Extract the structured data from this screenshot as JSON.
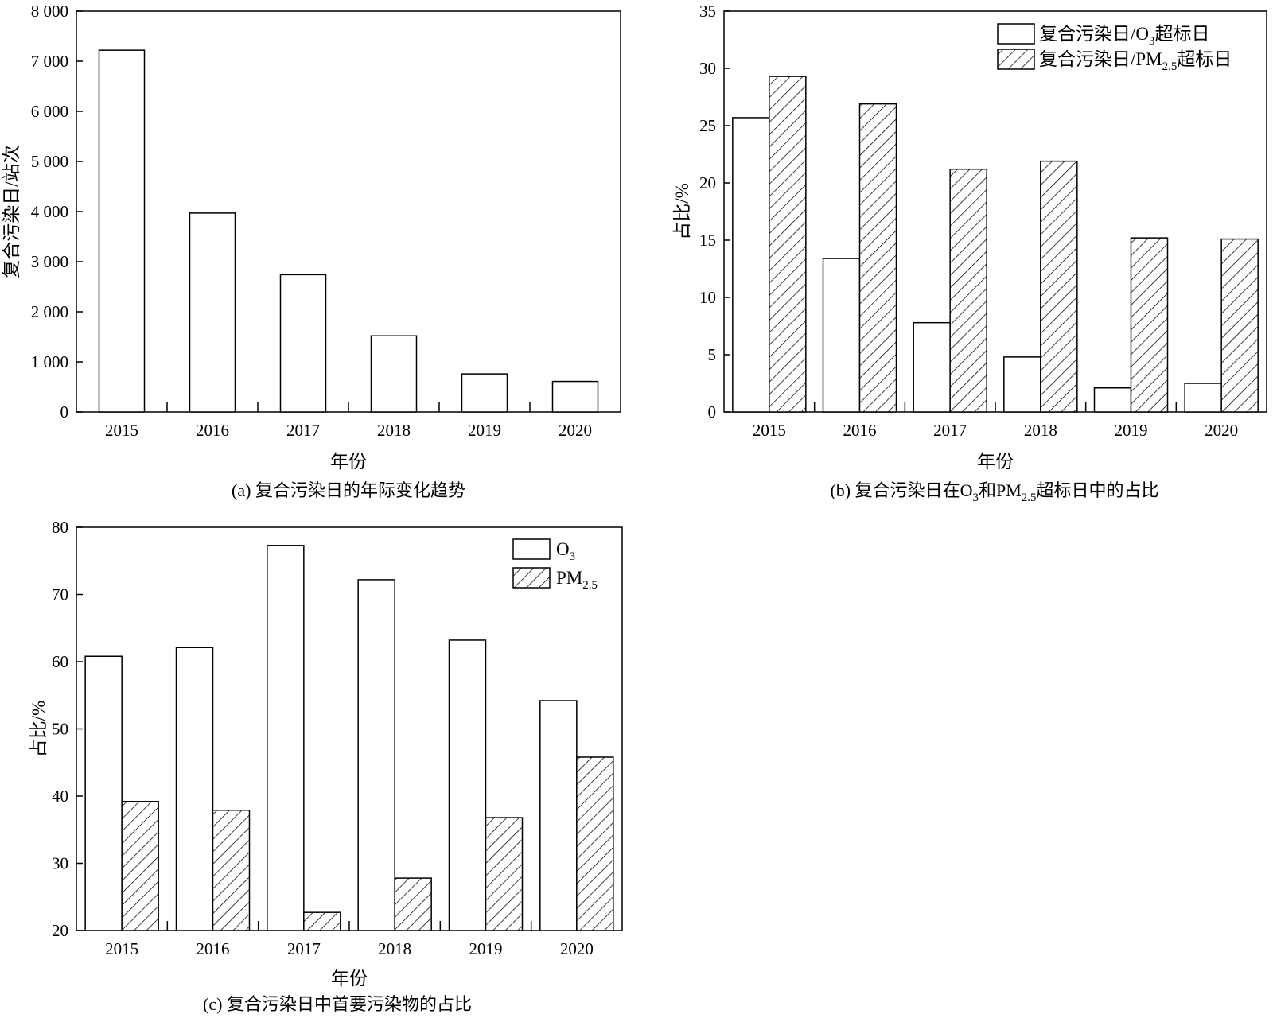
{
  "chart_data": [
    {
      "panel": "a",
      "type": "bar",
      "caption": "(a) 复合污染日的年际变化趋势",
      "xlabel": "年份",
      "ylabel": "复合污染日/站次",
      "categories": [
        "2015",
        "2016",
        "2017",
        "2018",
        "2019",
        "2020"
      ],
      "series": [
        {
          "values": [
            7220,
            3970,
            2740,
            1520,
            760,
            610
          ],
          "fill": "open"
        }
      ],
      "ylim": [
        0,
        8000
      ],
      "yticks": [
        0,
        1000,
        2000,
        3000,
        4000,
        5000,
        6000,
        7000,
        8000
      ],
      "ytick_labels": [
        "0",
        "1 000",
        "2 000",
        "3 000",
        "4 000",
        "5 000",
        "6 000",
        "7 000",
        "8 000"
      ],
      "grid": false
    },
    {
      "panel": "b",
      "type": "bar",
      "caption_parts": [
        "(b) 复合污染日在O",
        "3",
        "和PM",
        "2.5",
        "超标日中的占比"
      ],
      "xlabel": "年份",
      "ylabel": "占比/%",
      "categories": [
        "2015",
        "2016",
        "2017",
        "2018",
        "2019",
        "2020"
      ],
      "series": [
        {
          "name_parts": [
            "复合污染日/O",
            "3",
            "超标日"
          ],
          "values": [
            25.7,
            13.4,
            7.8,
            4.8,
            2.1,
            2.5
          ],
          "fill": "open"
        },
        {
          "name_parts": [
            "复合污染日/PM",
            "2.5",
            "超标日"
          ],
          "values": [
            29.3,
            26.9,
            21.2,
            21.9,
            15.2,
            15.1
          ],
          "fill": "hatch"
        }
      ],
      "ylim": [
        0,
        35
      ],
      "yticks": [
        0,
        5,
        10,
        15,
        20,
        25,
        30,
        35
      ],
      "ytick_labels": [
        "0",
        "5",
        "10",
        "15",
        "20",
        "25",
        "30",
        "35"
      ],
      "legend_position": "top-right",
      "grid": false
    },
    {
      "panel": "c",
      "type": "bar",
      "caption": "(c) 复合污染日中首要污染物的占比",
      "xlabel": "年份",
      "ylabel": "占比/%",
      "categories": [
        "2015",
        "2016",
        "2017",
        "2018",
        "2019",
        "2020"
      ],
      "series": [
        {
          "name_parts": [
            "O",
            "3",
            ""
          ],
          "values": [
            60.8,
            62.1,
            77.3,
            72.2,
            63.2,
            54.2
          ],
          "fill": "open"
        },
        {
          "name_parts": [
            "PM",
            "2.5",
            ""
          ],
          "values": [
            39.2,
            37.9,
            22.7,
            27.8,
            36.8,
            45.8
          ],
          "fill": "hatch"
        }
      ],
      "ylim": [
        20,
        80
      ],
      "yticks": [
        20,
        30,
        40,
        50,
        60,
        70,
        80
      ],
      "ytick_labels": [
        "20",
        "30",
        "40",
        "50",
        "60",
        "70",
        "80"
      ],
      "legend_position": "top-right",
      "grid": false
    }
  ]
}
